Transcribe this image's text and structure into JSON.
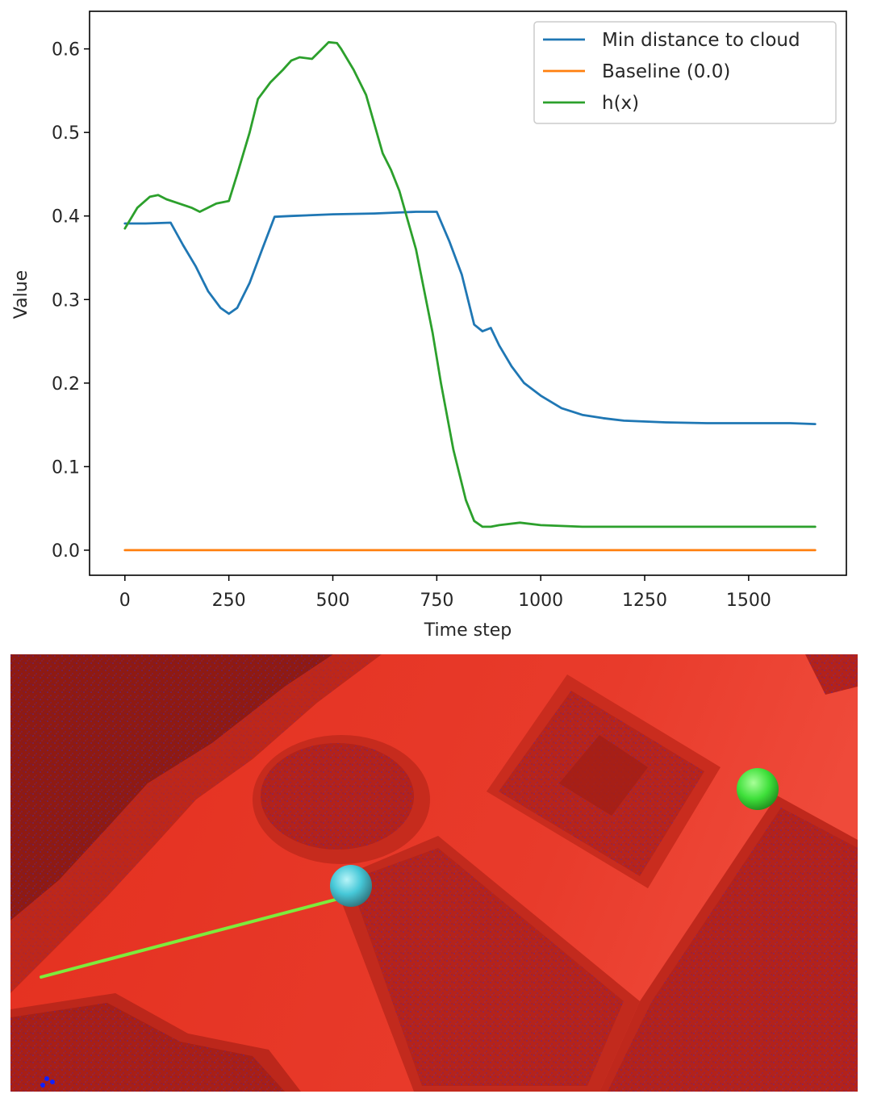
{
  "chart_data": {
    "type": "line",
    "title": "",
    "xlabel": "Time step",
    "ylabel": "Value",
    "xlim": [
      -85,
      1735
    ],
    "ylim": [
      -0.03,
      0.645
    ],
    "xticks": [
      0,
      250,
      500,
      750,
      1000,
      1250,
      1500
    ],
    "yticks": [
      0.0,
      0.1,
      0.2,
      0.3,
      0.4,
      0.5,
      0.6
    ],
    "ytick_labels": [
      "0.0",
      "0.1",
      "0.2",
      "0.3",
      "0.4",
      "0.5",
      "0.6"
    ],
    "legend_position": "top-right",
    "grid": false,
    "series": [
      {
        "name": "Min distance to cloud",
        "color": "#1f77b4",
        "x": [
          0,
          50,
          110,
          140,
          170,
          200,
          230,
          250,
          270,
          300,
          330,
          360,
          400,
          500,
          600,
          700,
          750,
          780,
          810,
          840,
          860,
          880,
          900,
          930,
          960,
          1000,
          1050,
          1100,
          1150,
          1200,
          1300,
          1400,
          1500,
          1600,
          1660
        ],
        "y": [
          0.391,
          0.391,
          0.392,
          0.365,
          0.34,
          0.31,
          0.29,
          0.283,
          0.29,
          0.32,
          0.36,
          0.399,
          0.4,
          0.402,
          0.403,
          0.405,
          0.405,
          0.37,
          0.33,
          0.27,
          0.262,
          0.266,
          0.245,
          0.22,
          0.2,
          0.185,
          0.17,
          0.162,
          0.158,
          0.155,
          0.153,
          0.152,
          0.152,
          0.152,
          0.151
        ]
      },
      {
        "name": "Baseline (0.0)",
        "color": "#ff7f0e",
        "x": [
          0,
          1660
        ],
        "y": [
          0.0,
          0.0
        ]
      },
      {
        "name": "h(x)",
        "color": "#2ca02c",
        "x": [
          0,
          30,
          60,
          80,
          100,
          130,
          160,
          180,
          200,
          220,
          250,
          270,
          300,
          320,
          350,
          380,
          400,
          420,
          450,
          470,
          490,
          510,
          520,
          550,
          580,
          600,
          620,
          640,
          660,
          680,
          700,
          720,
          740,
          760,
          790,
          820,
          840,
          860,
          880,
          900,
          950,
          1000,
          1100,
          1300,
          1500,
          1660
        ],
        "y": [
          0.385,
          0.41,
          0.423,
          0.425,
          0.42,
          0.415,
          0.41,
          0.405,
          0.41,
          0.415,
          0.418,
          0.45,
          0.5,
          0.54,
          0.56,
          0.575,
          0.586,
          0.59,
          0.588,
          0.598,
          0.608,
          0.607,
          0.6,
          0.575,
          0.545,
          0.51,
          0.475,
          0.455,
          0.43,
          0.395,
          0.36,
          0.31,
          0.26,
          0.2,
          0.12,
          0.06,
          0.035,
          0.028,
          0.028,
          0.03,
          0.033,
          0.03,
          0.028,
          0.028,
          0.028,
          0.028
        ]
      }
    ]
  },
  "scene": {
    "floor_color": "#e63526",
    "points_color": "#3a28c8",
    "agent_color": "#46dde8",
    "goal_color": "#3ee03a",
    "path_color": "#7dec3c"
  }
}
